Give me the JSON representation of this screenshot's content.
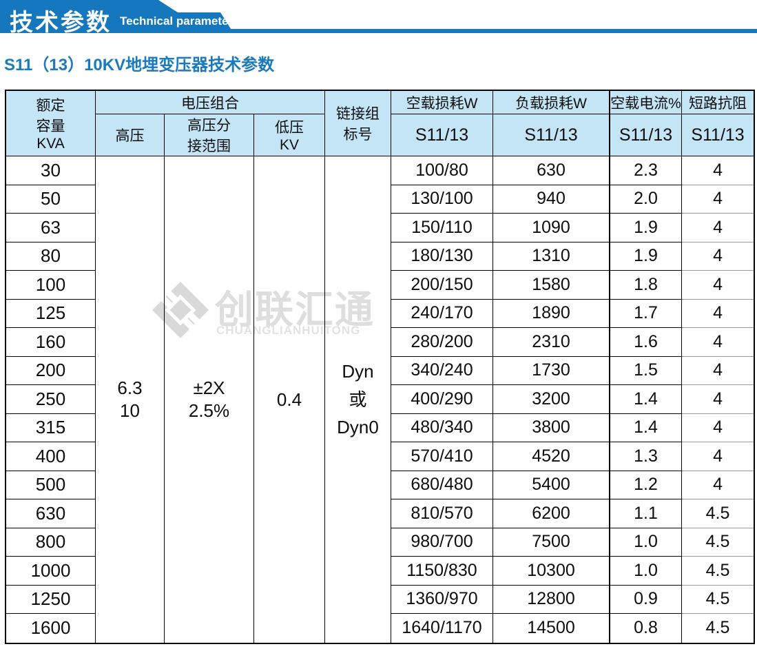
{
  "theme": {
    "brand_blue": "#1577bd",
    "header_bg": "#c3e5f6",
    "title_blue": "#1a7abd",
    "watermark_gray": "#d9d9d9"
  },
  "banner": {
    "title_cn": "技术参数",
    "title_en": "Technical parameter"
  },
  "section_title": "S11（13）10KV地埋变压器技术参数",
  "watermark": {
    "cn": "创联汇通",
    "en": "CHUANGLIANHUITONG",
    "icon": "brand-diamond-icon"
  },
  "table": {
    "header": {
      "capacity": "额定\n容量\nKVA",
      "voltage_group": "电压组合",
      "hv": "高压",
      "hv_tap": "高压分\n接范围",
      "lv": "低压\nKV",
      "connection": "链接组\n标号",
      "no_load_loss": "空载损耗W",
      "load_loss": "负载损耗W",
      "no_load_current": "空载电流%",
      "impedance": "短路抗阻",
      "model_no_load_loss": "S11/13",
      "model_load_loss": "S11/13",
      "model_no_load_current": "S11/13",
      "model_impedance": "S11/13"
    },
    "merged_values": {
      "hv": "6.3\n10",
      "hv_tap": "±2X\n2.5%",
      "lv": "0.4",
      "connection": "Dyn\n或\nDyn0"
    },
    "columns": [
      "capacity",
      "no_load_loss",
      "load_loss",
      "no_load_current",
      "impedance"
    ],
    "rows": [
      [
        "30",
        "100/80",
        "630",
        "2.3",
        "4"
      ],
      [
        "50",
        "130/100",
        "940",
        "2.0",
        "4"
      ],
      [
        "63",
        "150/110",
        "1090",
        "1.9",
        "4"
      ],
      [
        "80",
        "180/130",
        "1310",
        "1.9",
        "4"
      ],
      [
        "100",
        "200/150",
        "1580",
        "1.8",
        "4"
      ],
      [
        "125",
        "240/170",
        "1890",
        "1.7",
        "4"
      ],
      [
        "160",
        "280/200",
        "2310",
        "1.6",
        "4"
      ],
      [
        "200",
        "340/240",
        "1730",
        "1.5",
        "4"
      ],
      [
        "250",
        "400/290",
        "3200",
        "1.4",
        "4"
      ],
      [
        "315",
        "480/340",
        "3800",
        "1.4",
        "4"
      ],
      [
        "400",
        "570/410",
        "4520",
        "1.3",
        "4"
      ],
      [
        "500",
        "680/480",
        "5400",
        "1.2",
        "4"
      ],
      [
        "630",
        "810/570",
        "6200",
        "1.1",
        "4.5"
      ],
      [
        "800",
        "980/700",
        "7500",
        "1.0",
        "4.5"
      ],
      [
        "1000",
        "1150/830",
        "10300",
        "1.0",
        "4.5"
      ],
      [
        "1250",
        "1360/970",
        "12800",
        "0.9",
        "4.5"
      ],
      [
        "1600",
        "1640/1170",
        "14500",
        "0.8",
        "4.5"
      ]
    ]
  }
}
